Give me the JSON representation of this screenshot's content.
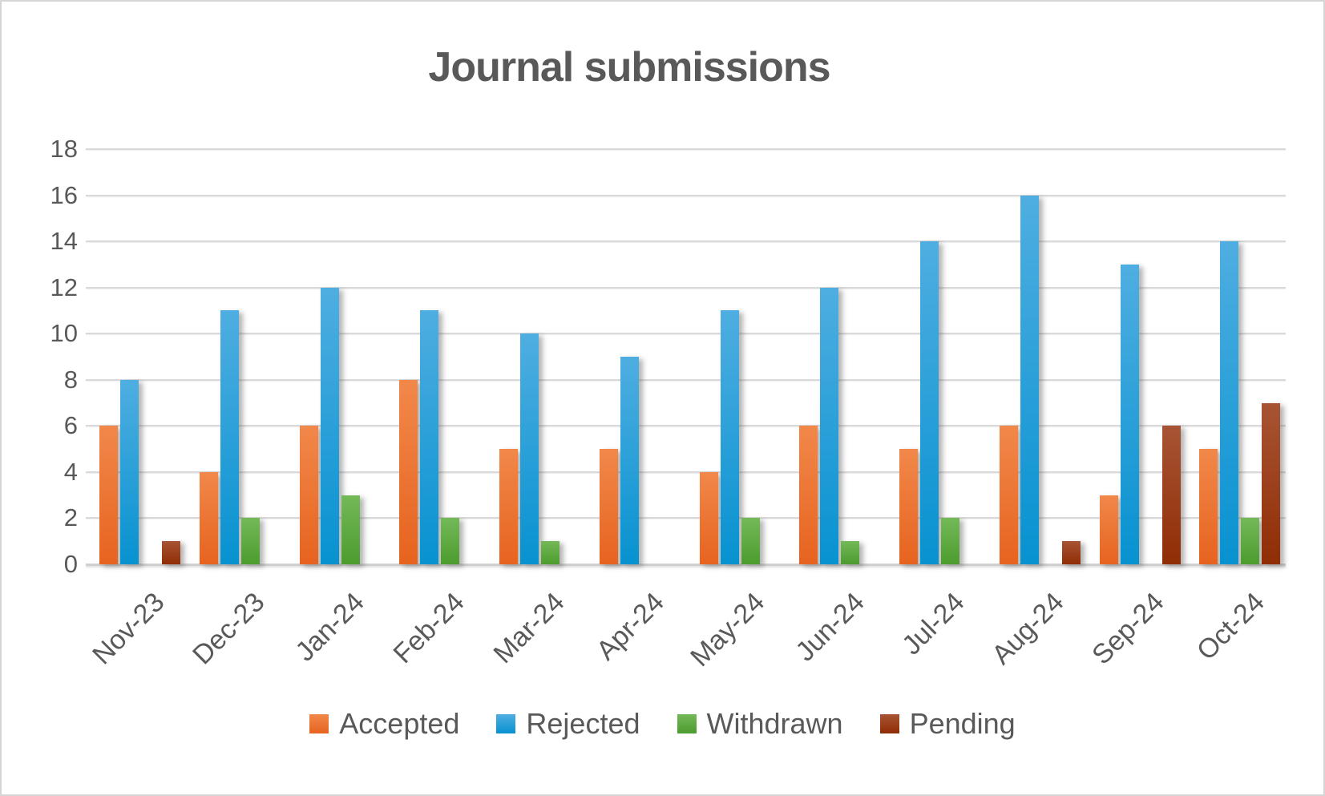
{
  "window": {
    "background": "#FFFFFF",
    "border_color": "#D5D5D5"
  },
  "colors": {
    "text": "#595959",
    "gridline": "#D9D9D9",
    "axis_line": "#CFCFCF"
  },
  "chart_data": {
    "type": "bar",
    "title": "Journal submissions",
    "categories": [
      "Nov-23",
      "Dec-23",
      "Jan-24",
      "Feb-24",
      "Mar-24",
      "Apr-24",
      "May-24",
      "Jun-24",
      "Jul-24",
      "Aug-24",
      "Sep-24",
      "Oct-24"
    ],
    "series": [
      {
        "name": "Accepted",
        "values": [
          6,
          4,
          6,
          8,
          5,
          5,
          4,
          6,
          5,
          6,
          3,
          5
        ],
        "fill_top": "#F1884A",
        "fill_bottom": "#E7631F"
      },
      {
        "name": "Rejected",
        "values": [
          8,
          11,
          12,
          11,
          10,
          9,
          11,
          12,
          14,
          16,
          13,
          14
        ],
        "fill_top": "#4FAEE1",
        "fill_bottom": "#0792D0"
      },
      {
        "name": "Withdrawn",
        "values": [
          0,
          2,
          3,
          2,
          1,
          0,
          2,
          1,
          2,
          0,
          0,
          2
        ],
        "fill_top": "#74B958",
        "fill_bottom": "#4C9C2E"
      },
      {
        "name": "Pending",
        "values": [
          1,
          0,
          0,
          0,
          0,
          0,
          0,
          0,
          0,
          1,
          6,
          7
        ],
        "fill_top": "#A85434",
        "fill_bottom": "#8F2D05"
      }
    ],
    "xlabel": "",
    "ylabel": "",
    "ylim": [
      0,
      18
    ],
    "yticks": [
      0,
      2,
      4,
      6,
      8,
      10,
      12,
      14,
      16,
      18
    ],
    "grid": true,
    "legend_position": "bottom",
    "xlabel_rotation_deg": -45
  }
}
